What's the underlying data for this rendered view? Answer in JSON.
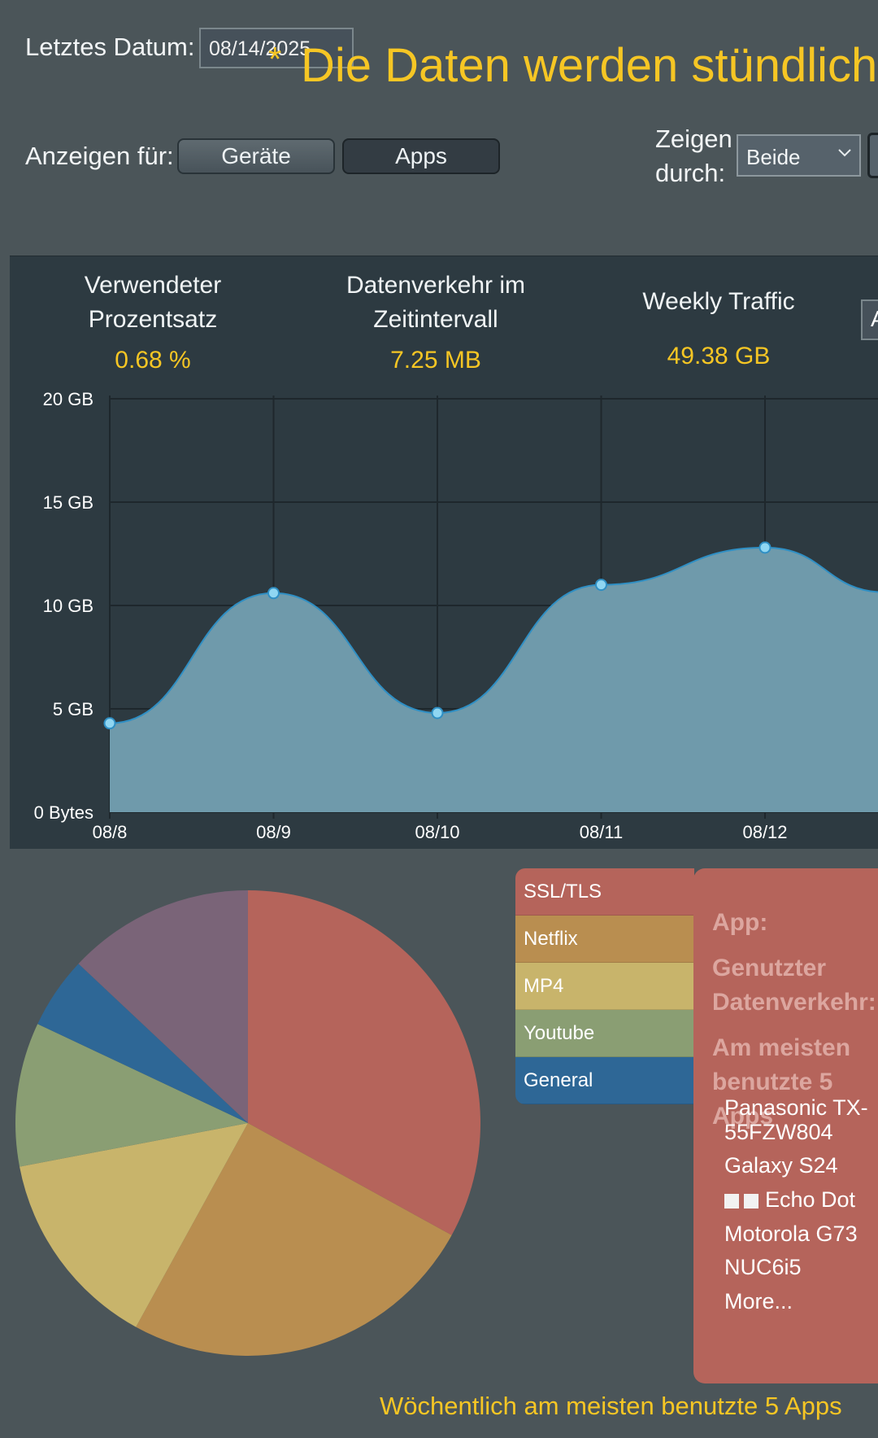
{
  "header": {
    "last_date_label": "Letztes Datum:",
    "last_date_value": "08/14/2025",
    "star": "*",
    "hourly_note": "Die Daten werden stündlich",
    "show_for_label": "Anzeigen für:",
    "tabs": [
      {
        "label": "Geräte",
        "selected": false
      },
      {
        "label": "Apps",
        "selected": true
      }
    ],
    "show_by_label_line1": "Zeigen",
    "show_by_label_line2": "durch:",
    "show_by_value": "Beide"
  },
  "stats": {
    "used_pct_title_1": "Verwendeter",
    "used_pct_title_2": "Prozentsatz",
    "used_pct_value": "0.68 %",
    "interval_title_1": "Datenverkehr im",
    "interval_title_2": "Zeitintervall",
    "interval_value": "7.25 MB",
    "weekly_title": "Weekly Traffic",
    "weekly_value": "49.38 GB",
    "side_stub": "A"
  },
  "chart_data": {
    "type": "area",
    "x": [
      "08/8",
      "08/9",
      "08/10",
      "08/11",
      "08/12"
    ],
    "values_gb": [
      4.3,
      10.6,
      4.8,
      11.0,
      12.8
    ],
    "y_ticks": [
      "0 Bytes",
      "5 GB",
      "10 GB",
      "15 GB",
      "20 GB"
    ],
    "ylim": [
      0,
      20
    ],
    "grid": true,
    "fill_color": "#6f9aab",
    "line_color": "#2f8fc4",
    "point_color": "#8fd6f2"
  },
  "pie_data": {
    "type": "pie",
    "slices": [
      {
        "name": "SSL/TLS",
        "value": 33,
        "color": "#b5645b"
      },
      {
        "name": "Netflix",
        "value": 25,
        "color": "#b98e50"
      },
      {
        "name": "MP4",
        "value": 14,
        "color": "#c8b46b"
      },
      {
        "name": "Youtube",
        "value": 10,
        "color": "#8a9e73"
      },
      {
        "name": "General",
        "value": 5,
        "color": "#2e6796"
      },
      {
        "name": "",
        "value": 13,
        "color": "#7a6478"
      }
    ]
  },
  "legend": [
    {
      "label": "SSL/TLS",
      "color": "#b5645b"
    },
    {
      "label": "Netflix",
      "color": "#b98e50"
    },
    {
      "label": "MP4",
      "color": "#c8b46b"
    },
    {
      "label": "Youtube",
      "color": "#8a9e73"
    },
    {
      "label": "General",
      "color": "#2e6796"
    }
  ],
  "tooltip": {
    "app_label": "App:",
    "traffic_label_1": "Genutzter",
    "traffic_label_2": "Datenverkehr:",
    "top5_label_1": "Am meisten",
    "top5_label_2": "benutzte 5 Apps",
    "devices": [
      "Panasonic TX-55FZW804",
      "Galaxy S24",
      "Echo Dot",
      "Motorola G73",
      "NUC6i5",
      "More..."
    ]
  },
  "footer": "Wöchentlich am meisten benutzte 5 Apps"
}
